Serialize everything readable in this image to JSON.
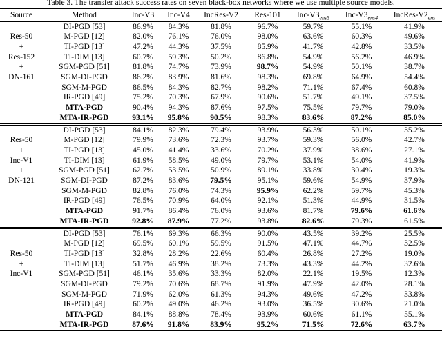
{
  "page": {
    "title": "Table 3. The transfer attack success rates on seven black-box networks where we use multiple source models."
  },
  "columns": [
    {
      "label": "Source",
      "sub": ""
    },
    {
      "label": "Method",
      "sub": ""
    },
    {
      "label": "Inc-V3",
      "sub": ""
    },
    {
      "label": "Inc-V4",
      "sub": ""
    },
    {
      "label": "IncRes-V2",
      "sub": ""
    },
    {
      "label": "Res-101",
      "sub": ""
    },
    {
      "label": "Inc-V3",
      "sub": "ens3"
    },
    {
      "label": "Inc-V3",
      "sub": "ens4"
    },
    {
      "label": "IncRes-V2",
      "sub": "ens"
    }
  ],
  "groups": [
    {
      "source_lines": [
        "",
        "Res-50",
        "+",
        "Res-152",
        "+",
        "DN-161",
        "",
        "",
        "",
        ""
      ],
      "rows": [
        {
          "method": "DI-PGD [53]",
          "method_bold": false,
          "values": [
            "86.9%",
            "84.3%",
            "81.8%",
            "96.7%",
            "59.7%",
            "55.1%",
            "41.9%"
          ],
          "bold": []
        },
        {
          "method": "M-PGD [12]",
          "method_bold": false,
          "values": [
            "82.0%",
            "76.1%",
            "76.0%",
            "98.0%",
            "63.6%",
            "60.3%",
            "49.6%"
          ],
          "bold": []
        },
        {
          "method": "TI-PGD [13]",
          "method_bold": false,
          "values": [
            "47.2%",
            "44.3%",
            "37.5%",
            "85.9%",
            "41.7%",
            "42.8%",
            "33.5%"
          ],
          "bold": []
        },
        {
          "method": "TI-DIM [13]",
          "method_bold": false,
          "values": [
            "60.7%",
            "59.3%",
            "50.2%",
            "86.8%",
            "54.9%",
            "56.2%",
            "46.9%"
          ],
          "bold": []
        },
        {
          "method": "SGM-PGD [51]",
          "method_bold": false,
          "values": [
            "81.8%",
            "74.7%",
            "73.9%",
            "98.7%",
            "54.9%",
            "50.1%",
            "38.7%"
          ],
          "bold": [
            3
          ]
        },
        {
          "method": "SGM-DI-PGD",
          "method_bold": false,
          "values": [
            "86.2%",
            "83.9%",
            "81.6%",
            "98.3%",
            "69.8%",
            "64.9%",
            "54.4%"
          ],
          "bold": []
        },
        {
          "method": "SGM-M-PGD",
          "method_bold": false,
          "values": [
            "86.5%",
            "84.3%",
            "82.7%",
            "98.2%",
            "71.1%",
            "67.4%",
            "60.8%"
          ],
          "bold": []
        },
        {
          "method": "IR-PGD [49]",
          "method_bold": false,
          "values": [
            "75.2%",
            "70.3%",
            "67.9%",
            "90.6%",
            "51.7%",
            "49.1%",
            "37.5%"
          ],
          "bold": []
        },
        {
          "method": "MTA-PGD",
          "method_bold": true,
          "values": [
            "90.4%",
            "94.3%",
            "87.6%",
            "97.5%",
            "75.5%",
            "79.7%",
            "79.0%"
          ],
          "bold": []
        },
        {
          "method": "MTA-IR-PGD",
          "method_bold": true,
          "values": [
            "93.1%",
            "95.8%",
            "90.5%",
            "98.3%",
            "83.6%",
            "87.2%",
            "85.0%"
          ],
          "bold": [
            0,
            1,
            2,
            4,
            5,
            6
          ]
        }
      ]
    },
    {
      "source_lines": [
        "",
        "Res-50",
        "+",
        "Inc-V1",
        "+",
        "DN-121",
        "",
        "",
        "",
        ""
      ],
      "rows": [
        {
          "method": "DI-PGD [53]",
          "method_bold": false,
          "values": [
            "84.1%",
            "82.3%",
            "79.4%",
            "93.9%",
            "56.3%",
            "50.1%",
            "35.2%"
          ],
          "bold": []
        },
        {
          "method": "M-PGD [12]",
          "method_bold": false,
          "values": [
            "79.9%",
            "73.6%",
            "72.3%",
            "93.7%",
            "59.3%",
            "56.0%",
            "42.7%"
          ],
          "bold": []
        },
        {
          "method": "TI-PGD [13]",
          "method_bold": false,
          "values": [
            "45.0%",
            "41.4%",
            "33.6%",
            "70.2%",
            "37.9%",
            "38.6%",
            "27.1%"
          ],
          "bold": []
        },
        {
          "method": "TI-DIM [13]",
          "method_bold": false,
          "values": [
            "61.9%",
            "58.5%",
            "49.0%",
            "79.7%",
            "53.1%",
            "54.0%",
            "41.9%"
          ],
          "bold": []
        },
        {
          "method": "SGM-PGD [51]",
          "method_bold": false,
          "values": [
            "62.7%",
            "53.5%",
            "50.9%",
            "89.1%",
            "33.8%",
            "30.4%",
            "19.3%"
          ],
          "bold": []
        },
        {
          "method": "SGM-DI-PGD",
          "method_bold": false,
          "values": [
            "87.2%",
            "83.6%",
            "79.5%",
            "95.1%",
            "59.6%",
            "54.9%",
            "37.9%"
          ],
          "bold": [
            2
          ]
        },
        {
          "method": "SGM-M-PGD",
          "method_bold": false,
          "values": [
            "82.8%",
            "76.0%",
            "74.3%",
            "95.9%",
            "62.2%",
            "59.7%",
            "45.3%"
          ],
          "bold": [
            3
          ]
        },
        {
          "method": "IR-PGD [49]",
          "method_bold": false,
          "values": [
            "76.5%",
            "70.9%",
            "64.0%",
            "92.1%",
            "51.3%",
            "44.9%",
            "31.5%"
          ],
          "bold": []
        },
        {
          "method": "MTA-PGD",
          "method_bold": true,
          "values": [
            "91.7%",
            "86.4%",
            "76.0%",
            "93.6%",
            "81.7%",
            "79.6%",
            "61.6%"
          ],
          "bold": [
            5,
            6
          ]
        },
        {
          "method": "MTA-IR-PGD",
          "method_bold": true,
          "values": [
            "92.8%",
            "87.9%",
            "77.2%",
            "93.8%",
            "82.6%",
            "79.3%",
            "61.5%"
          ],
          "bold": [
            0,
            1,
            4
          ]
        }
      ]
    },
    {
      "source_lines": [
        "",
        "",
        "Res-50",
        "+",
        "Inc-V1",
        "",
        "",
        "",
        "",
        ""
      ],
      "rows": [
        {
          "method": "DI-PGD [53]",
          "method_bold": false,
          "values": [
            "76.1%",
            "69.3%",
            "66.3%",
            "90.0%",
            "43.5%",
            "39.2%",
            "25.5%"
          ],
          "bold": []
        },
        {
          "method": "M-PGD [12]",
          "method_bold": false,
          "values": [
            "69.5%",
            "60.1%",
            "59.5%",
            "91.5%",
            "47.1%",
            "44.7%",
            "32.5%"
          ],
          "bold": []
        },
        {
          "method": "TI-PGD [13]",
          "method_bold": false,
          "values": [
            "32.8%",
            "28.2%",
            "22.6%",
            "60.4%",
            "26.8%",
            "27.2%",
            "19.0%"
          ],
          "bold": []
        },
        {
          "method": "TI-DIM [13]",
          "method_bold": false,
          "values": [
            "51.7%",
            "46.9%",
            "38.2%",
            "73.3%",
            "43.3%",
            "44.2%",
            "32.6%"
          ],
          "bold": []
        },
        {
          "method": "SGM-PGD [51]",
          "method_bold": false,
          "values": [
            "46.1%",
            "35.6%",
            "33.3%",
            "82.0%",
            "22.1%",
            "19.5%",
            "12.3%"
          ],
          "bold": []
        },
        {
          "method": "SGM-DI-PGD",
          "method_bold": false,
          "values": [
            "79.2%",
            "70.6%",
            "68.7%",
            "91.9%",
            "47.9%",
            "42.0%",
            "28.1%"
          ],
          "bold": []
        },
        {
          "method": "SGM-M-PGD",
          "method_bold": false,
          "values": [
            "71.9%",
            "62.0%",
            "61.3%",
            "94.3%",
            "49.6%",
            "47.2%",
            "33.8%"
          ],
          "bold": []
        },
        {
          "method": "IR-PGD [49]",
          "method_bold": false,
          "values": [
            "60.2%",
            "49.0%",
            "46.2%",
            "93.0%",
            "36.5%",
            "30.6%",
            "21.0%"
          ],
          "bold": []
        },
        {
          "method": "MTA-PGD",
          "method_bold": true,
          "values": [
            "84.1%",
            "88.8%",
            "78.4%",
            "93.9%",
            "60.6%",
            "61.1%",
            "55.1%"
          ],
          "bold": []
        },
        {
          "method": "MTA-IR-PGD",
          "method_bold": true,
          "values": [
            "87.6%",
            "91.8%",
            "83.9%",
            "95.2%",
            "71.5%",
            "72.6%",
            "63.7%"
          ],
          "bold": [
            0,
            1,
            2,
            3,
            4,
            5,
            6
          ]
        }
      ]
    }
  ]
}
